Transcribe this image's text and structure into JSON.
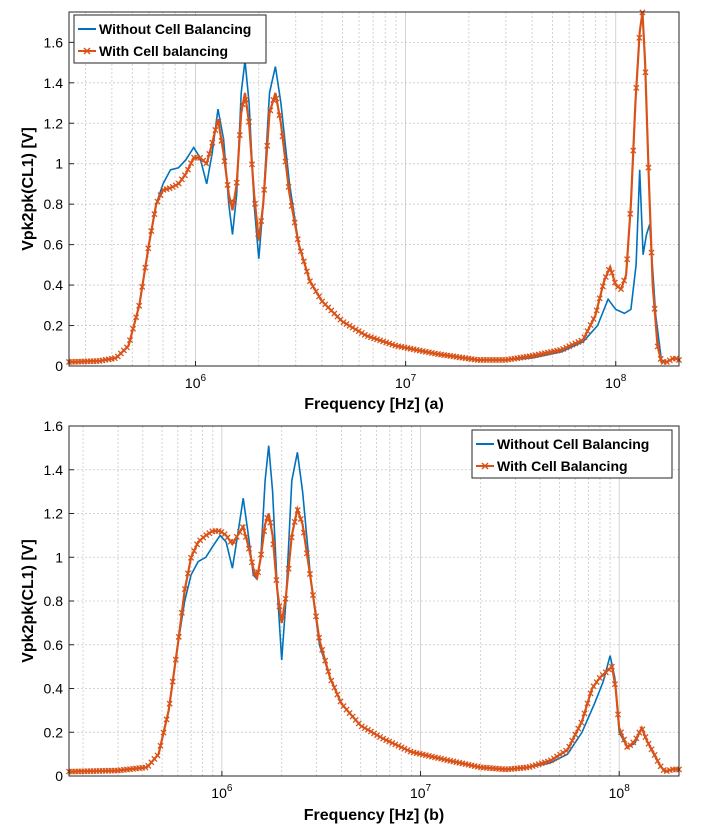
{
  "chart_data": [
    {
      "type": "line",
      "xscale": "log",
      "xlim": [
        250000,
        200000000
      ],
      "ylim": [
        0,
        1.75
      ],
      "xlabel": "Frequency [Hz] (a)",
      "ylabel": "Vpk2pk(CL1) [V]",
      "xticks": [
        1000000,
        10000000,
        100000000
      ],
      "xtick_labels": [
        {
          "base": "10",
          "exp": "6"
        },
        {
          "base": "10",
          "exp": "7"
        },
        {
          "base": "10",
          "exp": "8"
        }
      ],
      "yticks": [
        "0",
        "0.2",
        "0.4",
        "0.6",
        "0.8",
        "1",
        "1.2",
        "1.4",
        "1.6"
      ],
      "grid": true,
      "legend_position": "top-left",
      "colors": {
        "without": "#0072BD",
        "with": "#D95319"
      },
      "series": [
        {
          "name": "Without Cell Balancing",
          "marker": "none",
          "points": [
            [
              250000,
              0.02
            ],
            [
              350000,
              0.025
            ],
            [
              420000,
              0.04
            ],
            [
              480000,
              0.1
            ],
            [
              540000,
              0.3
            ],
            [
              600000,
              0.6
            ],
            [
              650000,
              0.8
            ],
            [
              700000,
              0.9
            ],
            [
              760000,
              0.97
            ],
            [
              830000,
              0.98
            ],
            [
              900000,
              1.02
            ],
            [
              980000,
              1.08
            ],
            [
              1050000,
              1.03
            ],
            [
              1130000,
              0.9
            ],
            [
              1200000,
              1.05
            ],
            [
              1280000,
              1.27
            ],
            [
              1360000,
              1.12
            ],
            [
              1440000,
              0.8
            ],
            [
              1500000,
              0.65
            ],
            [
              1570000,
              0.85
            ],
            [
              1650000,
              1.35
            ],
            [
              1720000,
              1.51
            ],
            [
              1800000,
              1.3
            ],
            [
              1900000,
              0.8
            ],
            [
              2000000,
              0.53
            ],
            [
              2100000,
              0.8
            ],
            [
              2250000,
              1.35
            ],
            [
              2400000,
              1.48
            ],
            [
              2550000,
              1.3
            ],
            [
              2800000,
              0.9
            ],
            [
              3100000,
              0.6
            ],
            [
              3500000,
              0.42
            ],
            [
              4000000,
              0.32
            ],
            [
              5000000,
              0.22
            ],
            [
              6500000,
              0.15
            ],
            [
              9000000,
              0.1
            ],
            [
              14000000,
              0.06
            ],
            [
              22000000,
              0.03
            ],
            [
              30000000,
              0.03
            ],
            [
              40000000,
              0.04
            ],
            [
              55000000,
              0.07
            ],
            [
              70000000,
              0.12
            ],
            [
              82000000,
              0.2
            ],
            [
              92000000,
              0.33
            ],
            [
              100000000,
              0.28
            ],
            [
              110000000,
              0.26
            ],
            [
              118000000,
              0.28
            ],
            [
              125000000,
              0.5
            ],
            [
              130000000,
              0.97
            ],
            [
              135000000,
              0.55
            ],
            [
              140000000,
              0.65
            ],
            [
              145000000,
              0.7
            ],
            [
              155000000,
              0.25
            ],
            [
              165000000,
              0.03
            ],
            [
              175000000,
              0.02
            ],
            [
              190000000,
              0.04
            ],
            [
              200000000,
              0.03
            ]
          ]
        },
        {
          "name": "With Cell balancing",
          "marker": "x",
          "points": [
            [
              250000,
              0.02
            ],
            [
              350000,
              0.025
            ],
            [
              420000,
              0.04
            ],
            [
              480000,
              0.1
            ],
            [
              540000,
              0.3
            ],
            [
              600000,
              0.6
            ],
            [
              650000,
              0.8
            ],
            [
              700000,
              0.87
            ],
            [
              760000,
              0.88
            ],
            [
              830000,
              0.9
            ],
            [
              900000,
              0.95
            ],
            [
              980000,
              1.03
            ],
            [
              1050000,
              1.03
            ],
            [
              1130000,
              1.0
            ],
            [
              1200000,
              1.1
            ],
            [
              1280000,
              1.22
            ],
            [
              1360000,
              1.05
            ],
            [
              1440000,
              0.85
            ],
            [
              1500000,
              0.77
            ],
            [
              1570000,
              0.9
            ],
            [
              1650000,
              1.25
            ],
            [
              1720000,
              1.35
            ],
            [
              1800000,
              1.2
            ],
            [
              1900000,
              0.85
            ],
            [
              2000000,
              0.62
            ],
            [
              2100000,
              0.8
            ],
            [
              2250000,
              1.25
            ],
            [
              2400000,
              1.35
            ],
            [
              2550000,
              1.2
            ],
            [
              2800000,
              0.85
            ],
            [
              3100000,
              0.6
            ],
            [
              3500000,
              0.42
            ],
            [
              4000000,
              0.32
            ],
            [
              5000000,
              0.22
            ],
            [
              6500000,
              0.15
            ],
            [
              9000000,
              0.1
            ],
            [
              14000000,
              0.06
            ],
            [
              22000000,
              0.03
            ],
            [
              30000000,
              0.03
            ],
            [
              40000000,
              0.05
            ],
            [
              55000000,
              0.08
            ],
            [
              70000000,
              0.13
            ],
            [
              80000000,
              0.25
            ],
            [
              88000000,
              0.42
            ],
            [
              94000000,
              0.49
            ],
            [
              100000000,
              0.4
            ],
            [
              106000000,
              0.38
            ],
            [
              112000000,
              0.45
            ],
            [
              118000000,
              0.8
            ],
            [
              124000000,
              1.3
            ],
            [
              130000000,
              1.65
            ],
            [
              134000000,
              1.75
            ],
            [
              138000000,
              1.5
            ],
            [
              144000000,
              0.9
            ],
            [
              150000000,
              0.4
            ],
            [
              158000000,
              0.1
            ],
            [
              165000000,
              0.02
            ],
            [
              175000000,
              0.02
            ],
            [
              190000000,
              0.04
            ],
            [
              200000000,
              0.03
            ]
          ]
        }
      ]
    },
    {
      "type": "line",
      "xscale": "log",
      "xlim": [
        170000,
        200000000
      ],
      "ylim": [
        0,
        1.6
      ],
      "xlabel": "Frequency [Hz] (b)",
      "ylabel": "Vpk2pk(CL1) [V]",
      "xticks": [
        1000000,
        10000000,
        100000000
      ],
      "xtick_labels": [
        {
          "base": "10",
          "exp": "6"
        },
        {
          "base": "10",
          "exp": "7"
        },
        {
          "base": "10",
          "exp": "8"
        }
      ],
      "yticks": [
        "0",
        "0.2",
        "0.4",
        "0.6",
        "0.8",
        "1",
        "1.2",
        "1.4",
        "1.6"
      ],
      "grid": true,
      "legend_position": "top-right",
      "colors": {
        "without": "#0072BD",
        "with": "#D95319"
      },
      "series": [
        {
          "name": "Without Cell Balancing",
          "marker": "none",
          "points": [
            [
              170000,
              0.02
            ],
            [
              300000,
              0.025
            ],
            [
              420000,
              0.04
            ],
            [
              480000,
              0.1
            ],
            [
              540000,
              0.3
            ],
            [
              600000,
              0.6
            ],
            [
              650000,
              0.8
            ],
            [
              700000,
              0.92
            ],
            [
              760000,
              0.98
            ],
            [
              830000,
              1.0
            ],
            [
              900000,
              1.05
            ],
            [
              980000,
              1.1
            ],
            [
              1050000,
              1.07
            ],
            [
              1130000,
              0.95
            ],
            [
              1200000,
              1.1
            ],
            [
              1280000,
              1.27
            ],
            [
              1360000,
              1.1
            ],
            [
              1440000,
              0.92
            ],
            [
              1500000,
              0.9
            ],
            [
              1570000,
              1.0
            ],
            [
              1650000,
              1.35
            ],
            [
              1720000,
              1.51
            ],
            [
              1800000,
              1.3
            ],
            [
              1900000,
              0.85
            ],
            [
              2000000,
              0.53
            ],
            [
              2100000,
              0.8
            ],
            [
              2250000,
              1.35
            ],
            [
              2400000,
              1.48
            ],
            [
              2550000,
              1.3
            ],
            [
              2800000,
              0.9
            ],
            [
              3100000,
              0.6
            ],
            [
              3500000,
              0.45
            ],
            [
              4000000,
              0.33
            ],
            [
              5000000,
              0.23
            ],
            [
              6500000,
              0.17
            ],
            [
              9000000,
              0.11
            ],
            [
              14000000,
              0.07
            ],
            [
              20000000,
              0.04
            ],
            [
              27000000,
              0.03
            ],
            [
              35000000,
              0.04
            ],
            [
              45000000,
              0.06
            ],
            [
              55000000,
              0.1
            ],
            [
              65000000,
              0.2
            ],
            [
              75000000,
              0.33
            ],
            [
              83000000,
              0.43
            ],
            [
              90000000,
              0.55
            ],
            [
              95000000,
              0.45
            ],
            [
              100000000,
              0.2
            ],
            [
              110000000,
              0.13
            ],
            [
              120000000,
              0.15
            ],
            [
              130000000,
              0.22
            ],
            [
              135000000,
              0.18
            ],
            [
              145000000,
              0.12
            ],
            [
              160000000,
              0.05
            ],
            [
              170000000,
              0.02
            ],
            [
              185000000,
              0.03
            ],
            [
              200000000,
              0.03
            ]
          ]
        },
        {
          "name": "With Cell Balancing",
          "marker": "x",
          "points": [
            [
              170000,
              0.02
            ],
            [
              300000,
              0.025
            ],
            [
              420000,
              0.04
            ],
            [
              480000,
              0.1
            ],
            [
              540000,
              0.3
            ],
            [
              600000,
              0.6
            ],
            [
              650000,
              0.85
            ],
            [
              700000,
              1.0
            ],
            [
              760000,
              1.07
            ],
            [
              830000,
              1.1
            ],
            [
              900000,
              1.12
            ],
            [
              980000,
              1.12
            ],
            [
              1050000,
              1.1
            ],
            [
              1130000,
              1.06
            ],
            [
              1200000,
              1.1
            ],
            [
              1280000,
              1.14
            ],
            [
              1360000,
              1.05
            ],
            [
              1440000,
              0.95
            ],
            [
              1500000,
              0.9
            ],
            [
              1570000,
              1.0
            ],
            [
              1650000,
              1.15
            ],
            [
              1720000,
              1.2
            ],
            [
              1800000,
              1.1
            ],
            [
              1900000,
              0.85
            ],
            [
              2000000,
              0.7
            ],
            [
              2100000,
              0.82
            ],
            [
              2250000,
              1.1
            ],
            [
              2400000,
              1.22
            ],
            [
              2550000,
              1.15
            ],
            [
              2800000,
              0.9
            ],
            [
              3100000,
              0.62
            ],
            [
              3500000,
              0.45
            ],
            [
              4000000,
              0.33
            ],
            [
              5000000,
              0.23
            ],
            [
              6500000,
              0.17
            ],
            [
              9000000,
              0.11
            ],
            [
              14000000,
              0.07
            ],
            [
              20000000,
              0.04
            ],
            [
              27000000,
              0.03
            ],
            [
              35000000,
              0.04
            ],
            [
              45000000,
              0.07
            ],
            [
              55000000,
              0.12
            ],
            [
              65000000,
              0.25
            ],
            [
              73000000,
              0.4
            ],
            [
              80000000,
              0.45
            ],
            [
              87000000,
              0.48
            ],
            [
              92000000,
              0.5
            ],
            [
              96000000,
              0.4
            ],
            [
              100000000,
              0.22
            ],
            [
              110000000,
              0.13
            ],
            [
              120000000,
              0.16
            ],
            [
              130000000,
              0.22
            ],
            [
              138000000,
              0.16
            ],
            [
              150000000,
              0.1
            ],
            [
              160000000,
              0.05
            ],
            [
              170000000,
              0.02
            ],
            [
              185000000,
              0.03
            ],
            [
              200000000,
              0.03
            ]
          ]
        }
      ]
    }
  ]
}
